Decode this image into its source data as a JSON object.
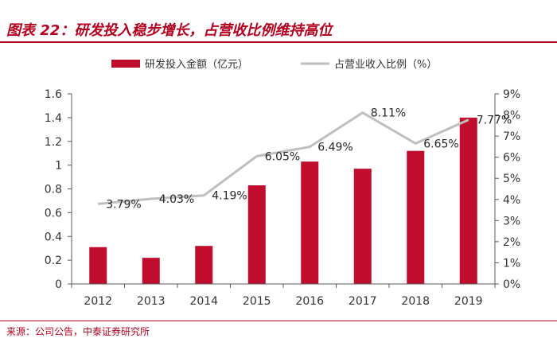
{
  "figure": {
    "title": "图表 22：研发投入稳步增长，占营收比例维持高位",
    "source": "来源：公司公告，中泰证券研究所"
  },
  "colors": {
    "bar": "#c00d2e",
    "line": "#bfbfbf",
    "accent": "#b5001f",
    "axis": "#595959"
  },
  "chart_data": {
    "type": "bar",
    "title": "研发投入稳步增长，占营收比例维持高位",
    "categories": [
      "2012",
      "2013",
      "2014",
      "2015",
      "2016",
      "2017",
      "2018",
      "2019"
    ],
    "series": [
      {
        "name": "研发投入金额（亿元）",
        "type": "bar",
        "axis": "left",
        "values": [
          0.31,
          0.22,
          0.32,
          0.83,
          1.03,
          0.97,
          1.12,
          1.4
        ]
      },
      {
        "name": "占营业收入比例（%）",
        "type": "line",
        "axis": "right",
        "values": [
          3.79,
          4.03,
          4.19,
          6.05,
          6.49,
          8.11,
          6.65,
          7.77
        ],
        "labels": [
          "3.79%",
          "4.03%",
          "4.19%",
          "6.05%",
          "6.49%",
          "8.11%",
          "6.65%",
          "7.77%"
        ]
      }
    ],
    "y_left": {
      "min": 0,
      "max": 1.6,
      "ticks": [
        0,
        0.2,
        0.4,
        0.6,
        0.8,
        1,
        1.2,
        1.4,
        1.6
      ],
      "tick_labels": [
        "0",
        "0.2",
        "0.4",
        "0.6",
        "0.8",
        "1",
        "1.2",
        "1.4",
        "1.6"
      ]
    },
    "y_right": {
      "min": 0,
      "max": 9,
      "ticks": [
        0,
        1,
        2,
        3,
        4,
        5,
        6,
        7,
        8,
        9
      ],
      "tick_labels": [
        "0%",
        "1%",
        "2%",
        "3%",
        "4%",
        "5%",
        "6%",
        "7%",
        "8%",
        "9%"
      ]
    },
    "legend": {
      "position": "top"
    },
    "grid": false
  }
}
